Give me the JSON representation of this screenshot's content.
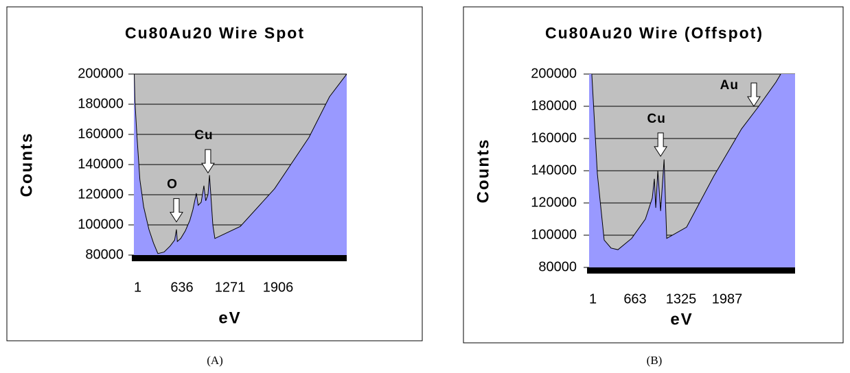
{
  "chart_data": [
    {
      "type": "area",
      "title": "Cu80Au20 Wire Spot",
      "x_label": "eV",
      "y_label": "Counts",
      "caption": "(A)",
      "color": "#9999ff",
      "plot_background": "#c0c0c0",
      "grid": true,
      "x": [
        1,
        15,
        40,
        80,
        130,
        200,
        260,
        318,
        400,
        480,
        540,
        563,
        575,
        620,
        680,
        740,
        780,
        826,
        850,
        890,
        926,
        950,
        980,
        1000,
        1044,
        1071,
        1407,
        1860,
        2314,
        2586,
        2813
      ],
      "values": [
        210000,
        182000,
        160000,
        130000,
        112000,
        97000,
        88000,
        81000,
        82000,
        86000,
        90000,
        97000,
        89000,
        91000,
        96000,
        103000,
        110000,
        121000,
        113000,
        115000,
        126000,
        116000,
        120000,
        133000,
        100000,
        91000,
        99000,
        124000,
        158000,
        185000,
        200000
      ],
      "xlim": [
        1,
        2813
      ],
      "xticks": [
        1,
        636,
        1271,
        1906
      ],
      "ylim": [
        80000,
        200000
      ],
      "yticks": [
        80000,
        100000,
        120000,
        140000,
        160000,
        180000,
        200000
      ],
      "annotations": [
        {
          "text": "O",
          "x": 563,
          "y": 102000
        },
        {
          "text": "Cu",
          "x": 980,
          "y": 134500
        }
      ]
    },
    {
      "type": "area",
      "title": "Cu80Au20 Wire (Offspot)",
      "x_label": "eV",
      "y_label": "Counts",
      "caption": "(B)",
      "color": "#9999ff",
      "plot_background": "#c0c0c0",
      "grid": true,
      "x": [
        1,
        40,
        120,
        218,
        317,
        416,
        613,
        811,
        910,
        940,
        960,
        990,
        1030,
        1080,
        1118,
        1404,
        1800,
        2195,
        2442,
        2690,
        2965
      ],
      "values": [
        230000,
        200000,
        138000,
        97000,
        92000,
        91000,
        98000,
        110000,
        123000,
        135000,
        117000,
        140000,
        115000,
        147000,
        98000,
        105000,
        137000,
        166000,
        180000,
        195000,
        215000
      ],
      "xlim": [
        1,
        2965
      ],
      "xticks": [
        1,
        663,
        1325,
        1987
      ],
      "ylim": [
        80000,
        200000
      ],
      "yticks": [
        80000,
        100000,
        120000,
        140000,
        160000,
        180000,
        200000
      ],
      "annotations": [
        {
          "text": "Cu",
          "x": 1030,
          "y": 149000
        },
        {
          "text": "Au",
          "x": 2372,
          "y": 180000
        }
      ]
    }
  ]
}
